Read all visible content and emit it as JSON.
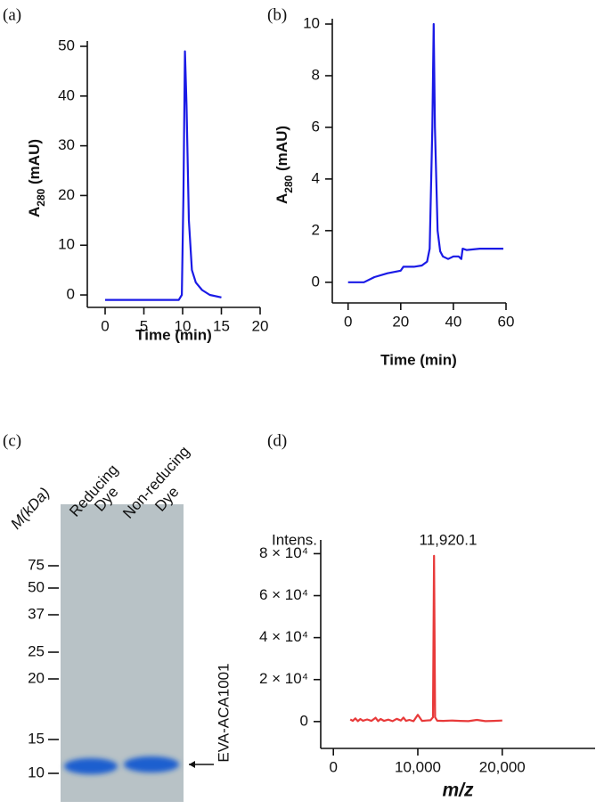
{
  "chart_data": [
    {
      "type": "line",
      "panel": "(a)",
      "x_label": "Time (min)",
      "y_label": [
        "A",
        "280",
        " (mAU)"
      ],
      "xlim": [
        -2.3,
        20
      ],
      "xticks": [
        0,
        5,
        10,
        15,
        20
      ],
      "ylim": [
        -2.5,
        50
      ],
      "yticks": [
        0,
        10,
        20,
        30,
        40,
        50
      ],
      "x": [
        0,
        5,
        9.5,
        9.9,
        10.1,
        10.3,
        10.5,
        10.8,
        11.2,
        11.7,
        12.5,
        13.5,
        15
      ],
      "series": [
        {
          "color": "#1a1ae6",
          "values": [
            -1,
            -1,
            -1,
            0,
            20,
            49,
            38,
            15,
            5,
            2.5,
            1,
            0,
            -0.5
          ]
        }
      ]
    },
    {
      "type": "line",
      "panel": "(b)",
      "x_label": "Time (min)",
      "y_label": [
        "A",
        "280",
        " (mAU)"
      ],
      "xlim": [
        -6,
        60
      ],
      "xticks": [
        0,
        20,
        40,
        60
      ],
      "ylim": [
        -0.8,
        10
      ],
      "yticks": [
        0,
        2,
        4,
        6,
        8,
        10
      ],
      "x": [
        0,
        6,
        10,
        15,
        20,
        21,
        25,
        28,
        30,
        31,
        32,
        32.5,
        33,
        34,
        35,
        36,
        38,
        40,
        42,
        43,
        43.5,
        45,
        50,
        55,
        59
      ],
      "series": [
        {
          "color": "#1a1ae6",
          "values": [
            0,
            0,
            0.2,
            0.35,
            0.45,
            0.6,
            0.6,
            0.65,
            0.8,
            1.3,
            6,
            10,
            6,
            2,
            1.2,
            1,
            0.9,
            1,
            1,
            0.9,
            1.3,
            1.25,
            1.3,
            1.3,
            1.3
          ]
        }
      ]
    },
    {
      "type": "line",
      "panel": "(d)",
      "x_label": "m/z",
      "y_label": [
        "Intens."
      ],
      "annotation": "11,920.1",
      "xlim": [
        -1500,
        31000
      ],
      "xticks": [
        0,
        {
          "value": 10000,
          "label": "10,000"
        },
        {
          "value": 20000,
          "label": "20,000"
        }
      ],
      "ylim": [
        -12800,
        84000
      ],
      "yticks": [
        0,
        {
          "value": 20000,
          "label": "2 × 10⁴"
        },
        {
          "value": 40000,
          "label": "4 × 10⁴"
        },
        {
          "value": 60000,
          "label": "6 × 10⁴"
        },
        {
          "value": 80000,
          "label": "8 × 10⁴"
        }
      ],
      "x": [
        2000,
        2300,
        2600,
        2900,
        3200,
        3500,
        4000,
        4500,
        5000,
        5300,
        5600,
        6000,
        6500,
        7000,
        7500,
        8000,
        8300,
        8600,
        9000,
        9500,
        10000,
        10500,
        11000,
        11500,
        11800,
        11920,
        12050,
        12300,
        13000,
        14000,
        15000,
        16000,
        17000,
        18000,
        19000,
        20000
      ],
      "series": [
        {
          "color": "#e83a3a",
          "values": [
            1000,
            300,
            1500,
            200,
            1200,
            400,
            1000,
            300,
            1800,
            200,
            1200,
            300,
            900,
            200,
            1300,
            500,
            1900,
            300,
            800,
            200,
            3200,
            300,
            500,
            600,
            2000,
            79000,
            2000,
            400,
            300,
            500,
            300,
            200,
            800,
            200,
            300,
            500
          ]
        }
      ]
    }
  ],
  "gel": {
    "panel": "(c)",
    "lanes": [
      "M(kDa)",
      "Reducing",
      "Dye",
      "Non-reducing",
      "Dye"
    ],
    "markers": [
      "75",
      "50",
      "37",
      "25",
      "20",
      "15",
      "10"
    ],
    "band_label": "EVA-ACA1001"
  }
}
